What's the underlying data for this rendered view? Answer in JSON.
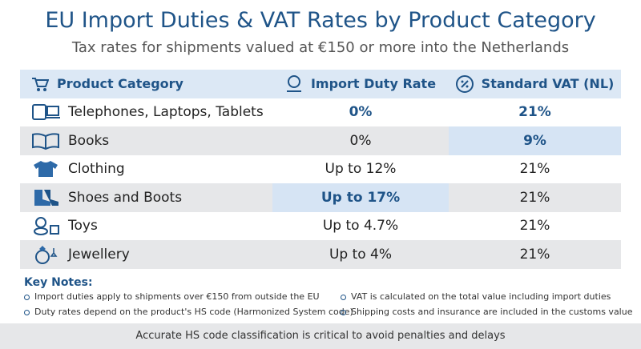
{
  "header": {
    "title": "EU Import Duties & VAT Rates by Product Category",
    "subtitle": "Tax rates for shipments valued at €150 or more into the Netherlands"
  },
  "table": {
    "columns": [
      "Product Category",
      "Import Duty Rate",
      "Standard VAT (NL)"
    ],
    "rows": [
      [
        "Telephones, Laptops, Tablets",
        "0%",
        "21%"
      ],
      [
        "Books",
        "0%",
        "9%"
      ],
      [
        "Clothing",
        "Up to 12%",
        "21%"
      ],
      [
        "Shoes and Boots",
        "Up to 17%",
        "21%"
      ],
      [
        "Toys",
        "Up to 4.7%",
        "21%"
      ],
      [
        "Jewellery",
        "Up to 4%",
        "21%"
      ]
    ]
  },
  "notes": {
    "title": "Key Notes:",
    "items": [
      "Import duties apply to shipments over €150 from outside the EU",
      "VAT is calculated on the total value including import duties",
      "Duty rates depend on the product's HS code (Harmonized System code)",
      "Shipping costs and insurance are included in the customs value"
    ]
  },
  "footer": "Accurate HS code classification is critical to avoid penalties and delays"
}
